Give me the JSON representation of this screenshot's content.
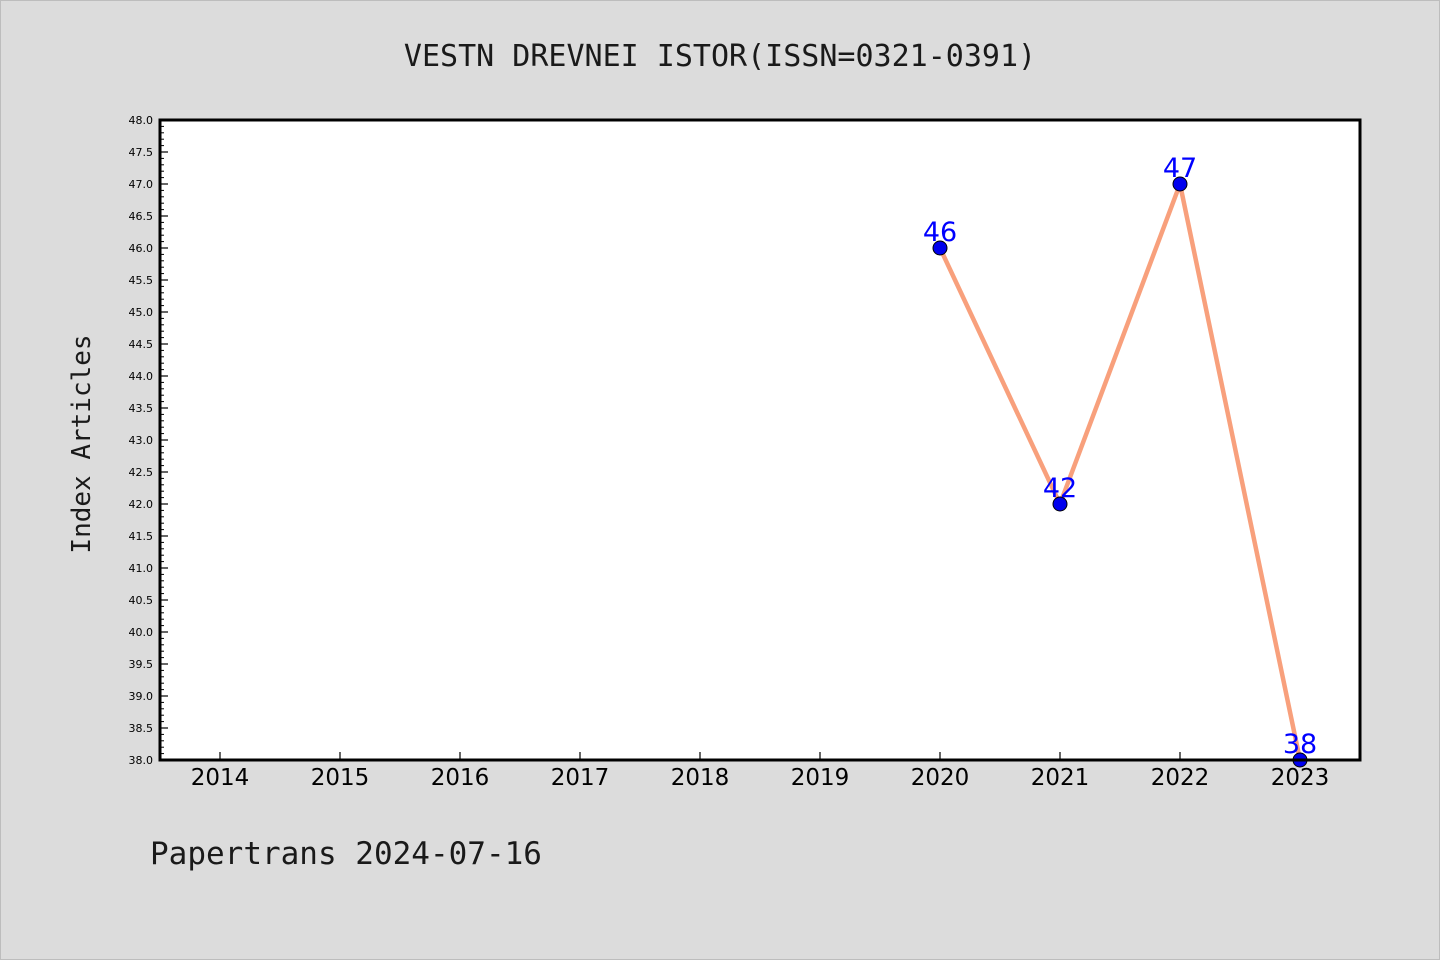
{
  "chart_data": {
    "type": "line",
    "title": "VESTN DREVNEI ISTOR(ISSN=0321-0391)",
    "ylabel": "Index Articles",
    "xlabel": "",
    "categories": [
      "2014",
      "2015",
      "2016",
      "2017",
      "2018",
      "2019",
      "2020",
      "2021",
      "2022",
      "2023"
    ],
    "ylim": [
      38.0,
      48.0
    ],
    "yticks": [
      "38.0",
      "38.5",
      "39.0",
      "39.5",
      "40.0",
      "40.5",
      "41.0",
      "41.5",
      "42.0",
      "42.5",
      "43.0",
      "43.5",
      "44.0",
      "44.5",
      "45.0",
      "45.5",
      "46.0",
      "46.5",
      "47.0",
      "47.5",
      "48.0"
    ],
    "series": [
      {
        "x": [
          "2020",
          "2021",
          "2022",
          "2023"
        ],
        "values": [
          46,
          42,
          47,
          38
        ],
        "data_labels": [
          "46",
          "42",
          "47",
          "38"
        ]
      }
    ],
    "grid": false,
    "line_color": "#f8a07c",
    "marker_color": "#0000ee",
    "label_color": "#0000ff"
  },
  "footer": {
    "text": "Papertrans 2024-07-16"
  }
}
